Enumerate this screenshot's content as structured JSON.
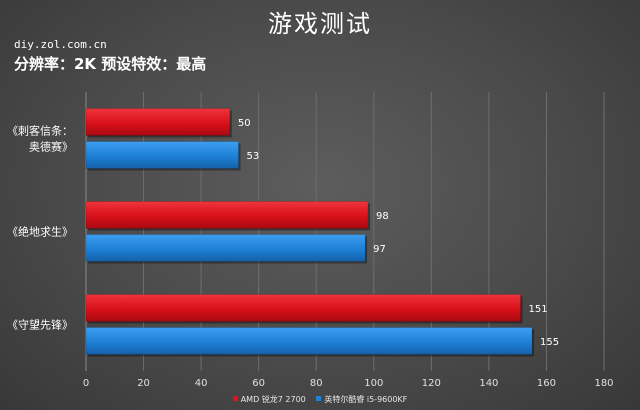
{
  "header": {
    "title": "游戏测试",
    "source": "diy.zol.com.cn",
    "subtitle": "分辨率：2K 预设特效：最高"
  },
  "chart_data": {
    "type": "bar",
    "orientation": "horizontal",
    "title": "游戏测试",
    "subtitle": "分辨率：2K 预设特效：最高",
    "categories": [
      {
        "lines": [
          "《刺客信条：",
          "奥德赛》"
        ]
      },
      {
        "lines": [
          "《绝地求生》"
        ]
      },
      {
        "lines": [
          "《守望先锋》"
        ]
      }
    ],
    "series": [
      {
        "name": "AMD 锐龙7 2700",
        "color": "#e0141e",
        "values": [
          50,
          98,
          151
        ]
      },
      {
        "name": "英特尔酷睿 i5-9600KF",
        "color": "#1e82d8",
        "values": [
          53,
          97,
          155
        ]
      }
    ],
    "xlim": [
      0,
      180
    ],
    "x_ticks": [
      0,
      20,
      40,
      60,
      80,
      100,
      120,
      140,
      160,
      180
    ],
    "grid": true,
    "legend_position": "bottom"
  }
}
